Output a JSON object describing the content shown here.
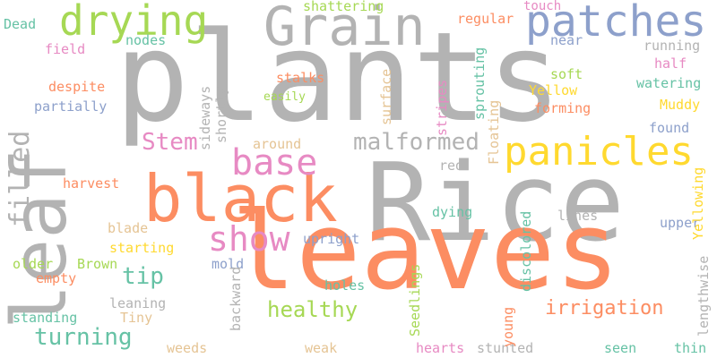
{
  "words": [
    {
      "text": "plants",
      "color": "#b3b3b3",
      "orientation": "horizontal"
    },
    {
      "text": "Rice",
      "color": "#b3b3b3",
      "orientation": "horizontal"
    },
    {
      "text": "leaves",
      "color": "#fc8d62",
      "orientation": "horizontal"
    },
    {
      "text": "leaf",
      "color": "#b3b3b3",
      "orientation": "vertical"
    },
    {
      "text": "black",
      "color": "#fc8d62",
      "orientation": "horizontal"
    },
    {
      "text": "Grain",
      "color": "#b3b3b3",
      "orientation": "horizontal"
    },
    {
      "text": "patches",
      "color": "#8da0cb",
      "orientation": "horizontal"
    },
    {
      "text": "drying",
      "color": "#a6d854",
      "orientation": "horizontal"
    },
    {
      "text": "panicles",
      "color": "#ffd92f",
      "orientation": "horizontal"
    },
    {
      "text": "base",
      "color": "#e78ac3",
      "orientation": "horizontal"
    },
    {
      "text": "show",
      "color": "#e78ac3",
      "orientation": "horizontal"
    },
    {
      "text": "filled",
      "color": "#b3b3b3",
      "orientation": "vertical"
    },
    {
      "text": "malformed",
      "color": "#b3b3b3",
      "orientation": "horizontal"
    },
    {
      "text": "Stem",
      "color": "#e78ac3",
      "orientation": "horizontal"
    },
    {
      "text": "turning",
      "color": "#66c2a5",
      "orientation": "horizontal"
    },
    {
      "text": "tip",
      "color": "#66c2a5",
      "orientation": "horizontal"
    },
    {
      "text": "healthy",
      "color": "#a6d854",
      "orientation": "horizontal"
    },
    {
      "text": "irrigation",
      "color": "#fc8d62",
      "orientation": "horizontal"
    },
    {
      "text": "shattering",
      "color": "#a6d854",
      "orientation": "horizontal"
    },
    {
      "text": "touch",
      "color": "#e78ac3",
      "orientation": "horizontal"
    },
    {
      "text": "Dead",
      "color": "#66c2a5",
      "orientation": "horizontal"
    },
    {
      "text": "field",
      "color": "#e78ac3",
      "orientation": "horizontal"
    },
    {
      "text": "nodes",
      "color": "#66c2a5",
      "orientation": "horizontal"
    },
    {
      "text": "despite",
      "color": "#fc8d62",
      "orientation": "horizontal"
    },
    {
      "text": "partially",
      "color": "#8da0cb",
      "orientation": "horizontal"
    },
    {
      "text": "regular",
      "color": "#fc8d62",
      "orientation": "horizontal"
    },
    {
      "text": "near",
      "color": "#8da0cb",
      "orientation": "horizontal"
    },
    {
      "text": "running",
      "color": "#b3b3b3",
      "orientation": "horizontal"
    },
    {
      "text": "half",
      "color": "#e78ac3",
      "orientation": "horizontal"
    },
    {
      "text": "watering",
      "color": "#66c2a5",
      "orientation": "horizontal"
    },
    {
      "text": "soft",
      "color": "#a6d854",
      "orientation": "horizontal"
    },
    {
      "text": "Yellow",
      "color": "#ffd92f",
      "orientation": "horizontal"
    },
    {
      "text": "forming",
      "color": "#fc8d62",
      "orientation": "horizontal"
    },
    {
      "text": "Muddy",
      "color": "#ffd92f",
      "orientation": "horizontal"
    },
    {
      "text": "found",
      "color": "#8da0cb",
      "orientation": "horizontal"
    },
    {
      "text": "stalks",
      "color": "#fc8d62",
      "orientation": "horizontal"
    },
    {
      "text": "easily",
      "color": "#a6d854",
      "orientation": "horizontal"
    },
    {
      "text": "around",
      "color": "#e5c494",
      "orientation": "horizontal"
    },
    {
      "text": "red",
      "color": "#b3b3b3",
      "orientation": "horizontal"
    },
    {
      "text": "harvest",
      "color": "#fc8d62",
      "orientation": "horizontal"
    },
    {
      "text": "dying",
      "color": "#66c2a5",
      "orientation": "horizontal"
    },
    {
      "text": "lines",
      "color": "#b3b3b3",
      "orientation": "horizontal"
    },
    {
      "text": "blade",
      "color": "#e5c494",
      "orientation": "horizontal"
    },
    {
      "text": "starting",
      "color": "#ffd92f",
      "orientation": "horizontal"
    },
    {
      "text": "upright",
      "color": "#8da0cb",
      "orientation": "horizontal"
    },
    {
      "text": "upper",
      "color": "#8da0cb",
      "orientation": "horizontal"
    },
    {
      "text": "Brown",
      "color": "#a6d854",
      "orientation": "horizontal"
    },
    {
      "text": "older",
      "color": "#a6d854",
      "orientation": "horizontal"
    },
    {
      "text": "empty",
      "color": "#fc8d62",
      "orientation": "horizontal"
    },
    {
      "text": "mold",
      "color": "#8da0cb",
      "orientation": "horizontal"
    },
    {
      "text": "holes",
      "color": "#66c2a5",
      "orientation": "horizontal"
    },
    {
      "text": "leaning",
      "color": "#b3b3b3",
      "orientation": "horizontal"
    },
    {
      "text": "standing",
      "color": "#66c2a5",
      "orientation": "horizontal"
    },
    {
      "text": "Tiny",
      "color": "#e5c494",
      "orientation": "horizontal"
    },
    {
      "text": "weeds",
      "color": "#e5c494",
      "orientation": "horizontal"
    },
    {
      "text": "weak",
      "color": "#e5c494",
      "orientation": "horizontal"
    },
    {
      "text": "hearts",
      "color": "#e78ac3",
      "orientation": "horizontal"
    },
    {
      "text": "stunted",
      "color": "#b3b3b3",
      "orientation": "horizontal"
    },
    {
      "text": "seen",
      "color": "#66c2a5",
      "orientation": "horizontal"
    },
    {
      "text": "thin",
      "color": "#66c2a5",
      "orientation": "horizontal"
    },
    {
      "text": "sideways",
      "color": "#b3b3b3",
      "orientation": "vertical"
    },
    {
      "text": "shortly",
      "color": "#b3b3b3",
      "orientation": "vertical"
    },
    {
      "text": "surface",
      "color": "#e5c494",
      "orientation": "vertical"
    },
    {
      "text": "stripes",
      "color": "#e78ac3",
      "orientation": "vertical"
    },
    {
      "text": "sprouting",
      "color": "#66c2a5",
      "orientation": "vertical"
    },
    {
      "text": "Floating",
      "color": "#e5c494",
      "orientation": "vertical"
    },
    {
      "text": "discolored",
      "color": "#66c2a5",
      "orientation": "vertical"
    },
    {
      "text": "Yellowing",
      "color": "#ffd92f",
      "orientation": "vertical"
    },
    {
      "text": "backward",
      "color": "#b3b3b3",
      "orientation": "vertical"
    },
    {
      "text": "Seedlings",
      "color": "#a6d854",
      "orientation": "vertical"
    },
    {
      "text": "young",
      "color": "#fc8d62",
      "orientation": "vertical"
    },
    {
      "text": "lengthwise",
      "color": "#b3b3b3",
      "orientation": "vertical"
    }
  ]
}
